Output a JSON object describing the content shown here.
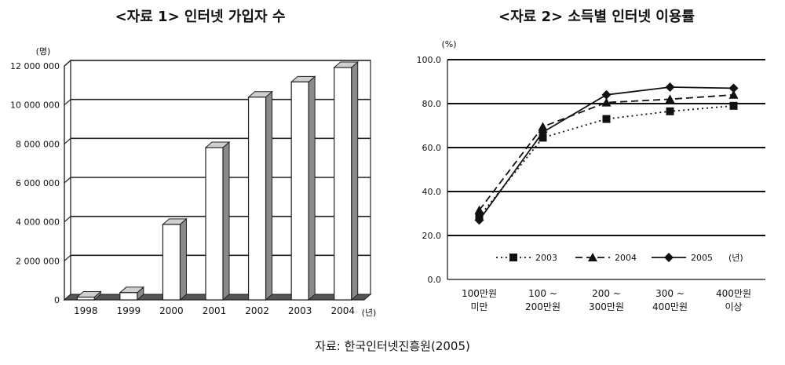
{
  "source": "자료:  한국인터넷진흥원(2005)",
  "chart_data": [
    {
      "type": "bar",
      "title": "<자료 1> 인터넷 가입자 수",
      "ylabel": "(명)",
      "xlabel": "(년)",
      "categories": [
        "1998",
        "1999",
        "2000",
        "2001",
        "2002",
        "2003",
        "2004"
      ],
      "values": [
        140000,
        370000,
        3870000,
        7810000,
        10400000,
        11180000,
        11920000
      ],
      "ylim": [
        0,
        12000000
      ],
      "yticks": [
        0,
        2000000,
        4000000,
        6000000,
        8000000,
        10000000,
        12000000
      ],
      "ytick_labels": [
        "0",
        "2 000 000",
        "4 000 000",
        "6 000 000",
        "8 000 000",
        "10 000 000",
        "12 000 000"
      ],
      "grid": true,
      "style": "3d-columns"
    },
    {
      "type": "line",
      "title": "<자료 2> 소득별 인터넷 이용률",
      "ylabel": "(%)",
      "legend_unit": "(년)",
      "categories": [
        [
          "100만원",
          "미만"
        ],
        [
          "100 ~",
          "200만원"
        ],
        [
          "200 ~",
          "300만원"
        ],
        [
          "300 ~",
          "400만원"
        ],
        [
          "400만원",
          "이상"
        ]
      ],
      "ylim": [
        0,
        100
      ],
      "yticks": [
        0,
        20,
        40,
        60,
        80,
        100
      ],
      "ytick_labels": [
        "0.0",
        "20.0",
        "40.0",
        "60.0",
        "80.0",
        "100.0"
      ],
      "grid": true,
      "legend": "bottom-inside",
      "series": [
        {
          "name": "2003",
          "values": [
            28.5,
            64.5,
            73.0,
            76.5,
            79.0
          ],
          "marker": "square",
          "dash": "dotted"
        },
        {
          "name": "2004",
          "values": [
            31.5,
            69.5,
            80.5,
            82.0,
            84.0
          ],
          "marker": "triangle",
          "dash": "dashed"
        },
        {
          "name": "2005",
          "values": [
            27.0,
            67.0,
            84.0,
            87.5,
            87.0
          ],
          "marker": "diamond",
          "dash": "solid"
        }
      ]
    }
  ]
}
